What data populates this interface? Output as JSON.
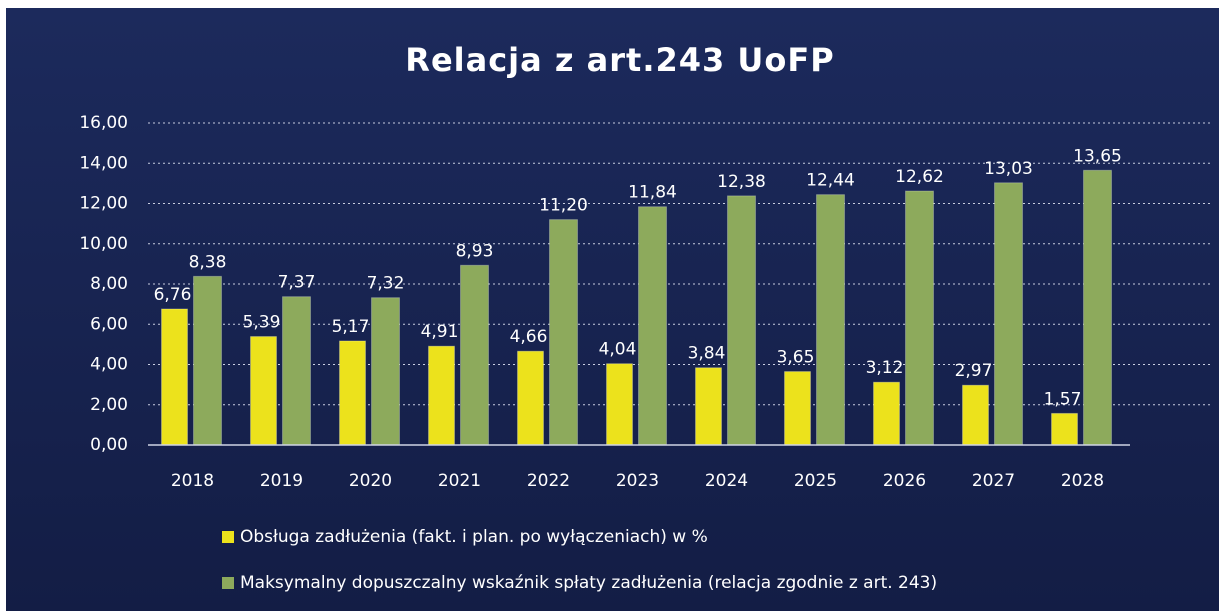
{
  "chart_data": {
    "type": "bar",
    "title": "Relacja z art.243 UoFP",
    "categories": [
      "2018",
      "2019",
      "2020",
      "2021",
      "2022",
      "2023",
      "2024",
      "2025",
      "2026",
      "2027",
      "2028"
    ],
    "series": [
      {
        "name": "Obsługa zadłużenia (fakt. i plan. po wyłączeniach) w %",
        "color": "#ece21c",
        "values": [
          6.76,
          5.39,
          5.17,
          4.91,
          4.66,
          4.04,
          3.84,
          3.65,
          3.12,
          2.97,
          1.57
        ],
        "value_labels": [
          "6,76",
          "5,39",
          "5,17",
          "4,91",
          "4,66",
          "4,04",
          "3,84",
          "3,65",
          "3,12",
          "2,97",
          "1,57"
        ]
      },
      {
        "name": "Maksymalny dopuszczalny wskaźnik spłaty  zadłużenia (relacja zgodnie z art. 243)",
        "color": "#8daa5c",
        "values": [
          8.38,
          7.37,
          7.32,
          8.93,
          11.2,
          11.84,
          12.38,
          12.44,
          12.62,
          13.03,
          13.65
        ],
        "value_labels": [
          "8,38",
          "7,37",
          "7,32",
          "8,93",
          "11,20",
          "11,84",
          "12,38",
          "12,44",
          "12,62",
          "13,03",
          "13,65"
        ]
      }
    ],
    "ylim": [
      0,
      16
    ],
    "yticks": [
      {
        "value": 0,
        "label": "0,00"
      },
      {
        "value": 2,
        "label": "2,00"
      },
      {
        "value": 4,
        "label": "4,00"
      },
      {
        "value": 6,
        "label": "6,00"
      },
      {
        "value": 8,
        "label": "8,00"
      },
      {
        "value": 10,
        "label": "10,00"
      },
      {
        "value": 12,
        "label": "12,00"
      },
      {
        "value": 14,
        "label": "14,00"
      },
      {
        "value": 16,
        "label": "16,00"
      }
    ],
    "grid": true,
    "legend": "bottom"
  }
}
